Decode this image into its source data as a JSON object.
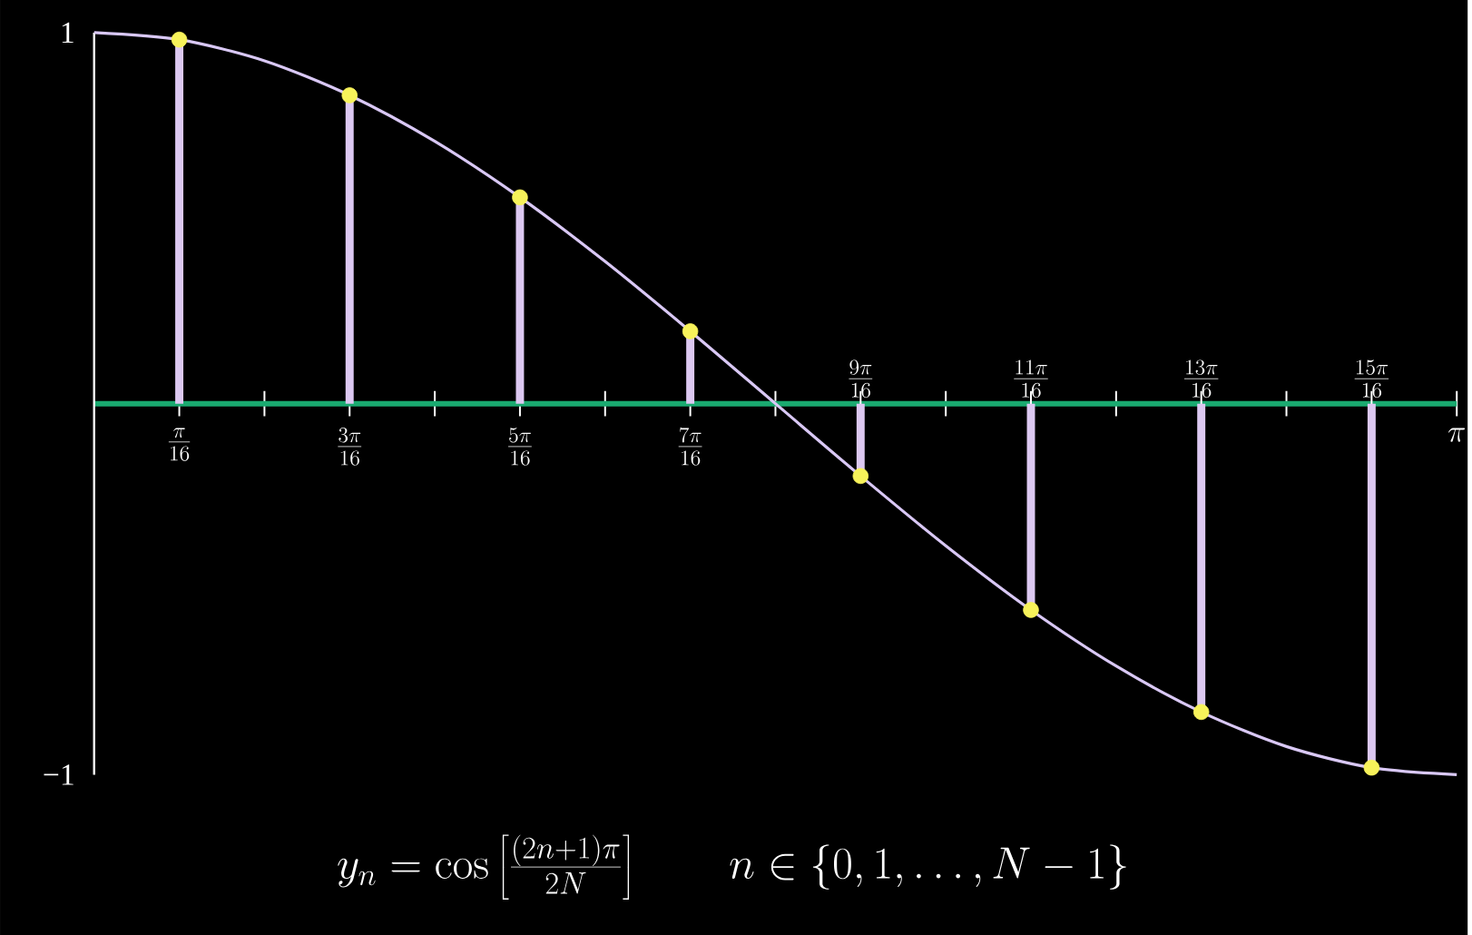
{
  "chart_data": {
    "type": "line",
    "categories": [
      null,
      "\\frac{\\pi}{16}",
      null,
      "\\frac{3\\pi}{16}",
      null,
      "\\frac{5\\pi}{16}",
      null,
      "\\frac{7\\pi}{16}",
      null,
      "\\frac{9\\pi}{16}",
      null,
      "\\frac{11\\pi}{16}",
      null,
      "\\frac{13\\pi}{16}",
      null,
      "\\frac{15\\pi}{16}",
      "\\pi"
    ],
    "ylim": [
      -1,
      1
    ],
    "yticks": [
      1,
      {
        "value": -1,
        "label": "−1"
      }
    ],
    "series": [
      {
        "color": "#d9c8f5",
        "values": [
          1,
          0.981,
          0.924,
          0.831,
          0.707,
          0.556,
          0.383,
          0.195,
          0,
          -0.195,
          -0.383,
          -0.556,
          -0.707,
          -0.831,
          -0.924,
          -0.981,
          -1
        ]
      },
      {
        "type": "lollipop",
        "color": "#f7f25a",
        "marker": "circle",
        "values": [
          null,
          0.981,
          null,
          0.831,
          null,
          0.556,
          null,
          0.195,
          null,
          -0.195,
          null,
          -0.556,
          null,
          -0.831,
          null,
          -0.981,
          null
        ]
      }
    ],
    "annotations": [
      "y_n = \\cos\\left[\\frac{(2n+1)\\pi}{2N}\\right] \\qquad n \\in \\{0, 1, \\ldots, N-1\\}"
    ]
  }
}
